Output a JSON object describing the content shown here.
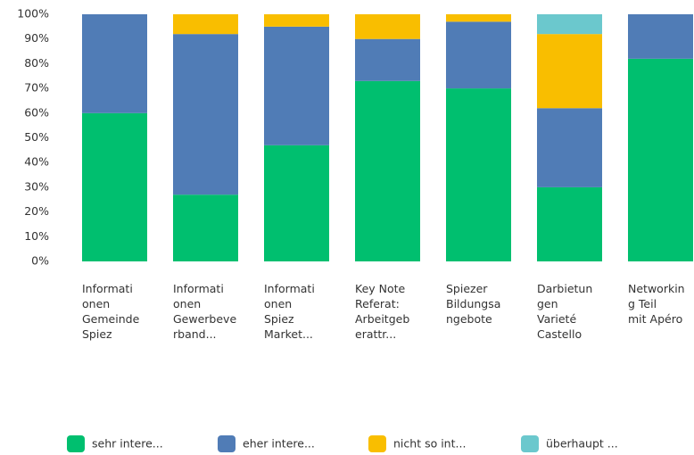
{
  "chart_data": {
    "type": "stacked_bar_100",
    "categories": [
      "Informationen Gemeinde Spiez",
      "Informationen Gewerbeverband...",
      "Informationen Spiez Market...",
      "Key Note Referat: Arbeitgeberattr...",
      "Spiezer Bildungsangebote",
      "Darbietungen Varieté Castello",
      "Networking Teil mit Apéro"
    ],
    "series": [
      {
        "name": "sehr intere...",
        "color": "#00bf6f",
        "values": [
          60,
          27,
          47,
          73,
          70,
          30,
          82
        ]
      },
      {
        "name": "eher intere...",
        "color": "#507cb6",
        "values": [
          40,
          65,
          48,
          17,
          27,
          32,
          18
        ]
      },
      {
        "name": "nicht so int...",
        "color": "#f9be00",
        "values": [
          0,
          8,
          5,
          10,
          3,
          30,
          0
        ]
      },
      {
        "name": "überhaupt ...",
        "color": "#6bc8cd",
        "values": [
          0,
          0,
          0,
          0,
          0,
          8,
          0
        ]
      }
    ],
    "ylim": [
      0,
      100
    ],
    "yticks": [
      {
        "value": 0,
        "label": "0%"
      },
      {
        "value": 10,
        "label": "10%"
      },
      {
        "value": 20,
        "label": "20%"
      },
      {
        "value": 30,
        "label": "30%"
      },
      {
        "value": 40,
        "label": "40%"
      },
      {
        "value": 50,
        "label": "50%"
      },
      {
        "value": 60,
        "label": "60%"
      },
      {
        "value": 70,
        "label": "70%"
      },
      {
        "value": 80,
        "label": "80%"
      },
      {
        "value": 90,
        "label": "90%"
      },
      {
        "value": 100,
        "label": "100%"
      }
    ],
    "grid": false
  }
}
